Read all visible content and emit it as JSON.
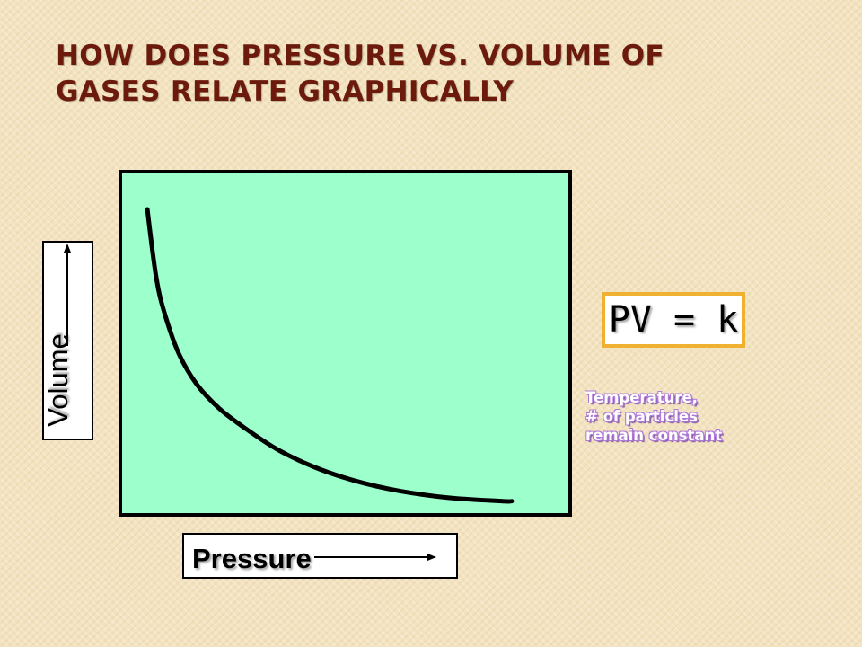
{
  "title": {
    "line1": "How does Pressure vs. Volume of",
    "line2": "Gases Relate graphically"
  },
  "colors": {
    "title": "#6b1a0c",
    "plot_background": "#9cffcc",
    "curve": "#000000",
    "equation_border": "#f0b030",
    "note_outline": "#b07ad8"
  },
  "chart_data": {
    "type": "line",
    "title": "",
    "xlabel": "Pressure",
    "ylabel": "Volume",
    "x_ticks": false,
    "y_ticks": false,
    "grid": false,
    "xlim": [
      0,
      10
    ],
    "ylim": [
      0,
      10
    ],
    "series": [
      {
        "x": [
          0.6,
          0.8,
          1.0,
          1.3,
          1.7,
          2.2,
          2.8,
          3.5,
          4.3,
          5.2,
          6.2,
          7.3,
          8.5,
          8.7
        ],
        "y": [
          8.9,
          6.9,
          5.8,
          4.7,
          3.8,
          3.1,
          2.5,
          1.9,
          1.4,
          1.0,
          0.7,
          0.5,
          0.4,
          0.4
        ]
      }
    ]
  },
  "equation": "PV = k",
  "note": {
    "line1": "Temperature,",
    "line2": "# of particles",
    "line3": "remain constant"
  }
}
